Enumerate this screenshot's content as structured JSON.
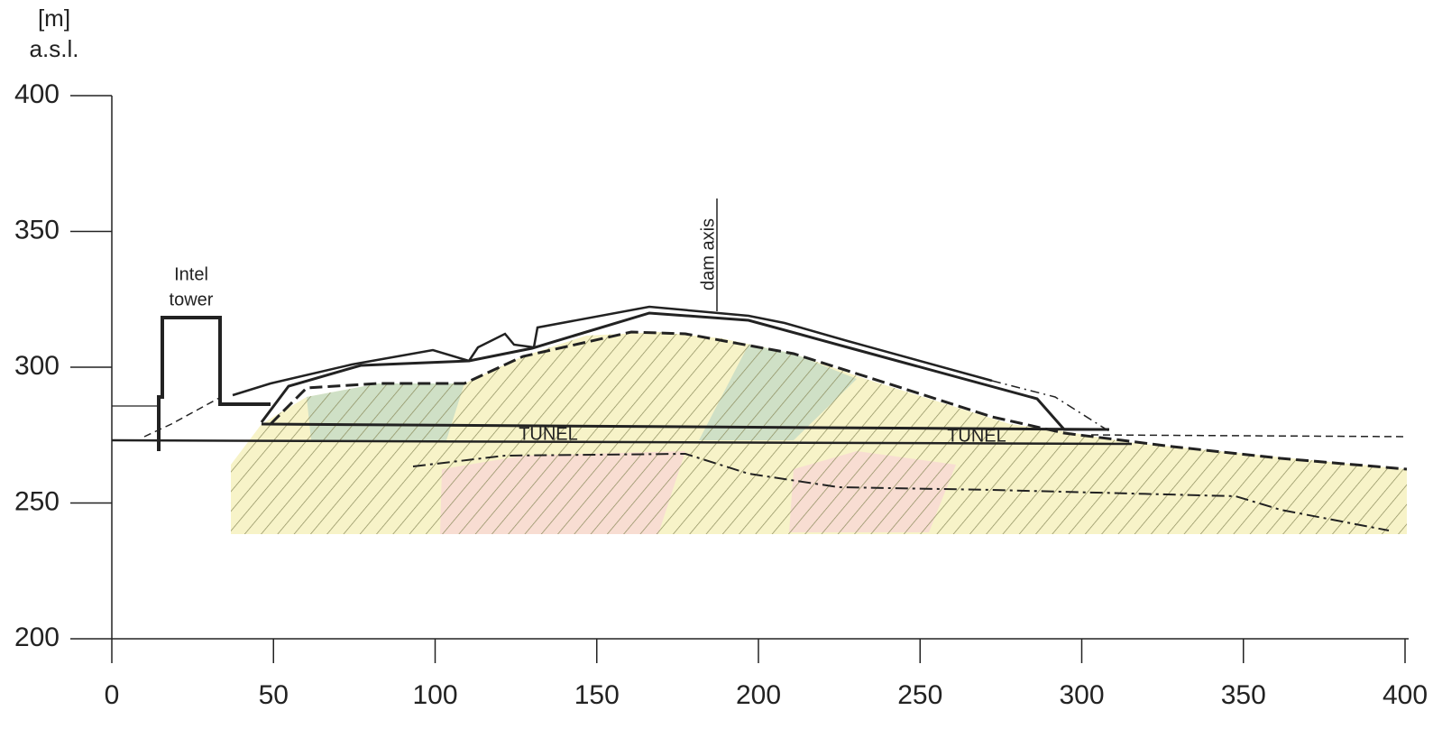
{
  "axis": {
    "unit_label": [
      "[m]",
      "a.s.l."
    ],
    "xlim": [
      0,
      400
    ],
    "ylim": [
      200,
      400
    ],
    "xticks": [
      0,
      50,
      100,
      150,
      200,
      250,
      300,
      350,
      400
    ],
    "yticks": [
      200,
      250,
      300,
      350,
      400
    ]
  },
  "annotations": {
    "tower": [
      "Intel",
      "tower"
    ],
    "dam_axis": "dam axis",
    "tunnel_labels": [
      "TUNEL",
      "TUNEL"
    ]
  }
}
